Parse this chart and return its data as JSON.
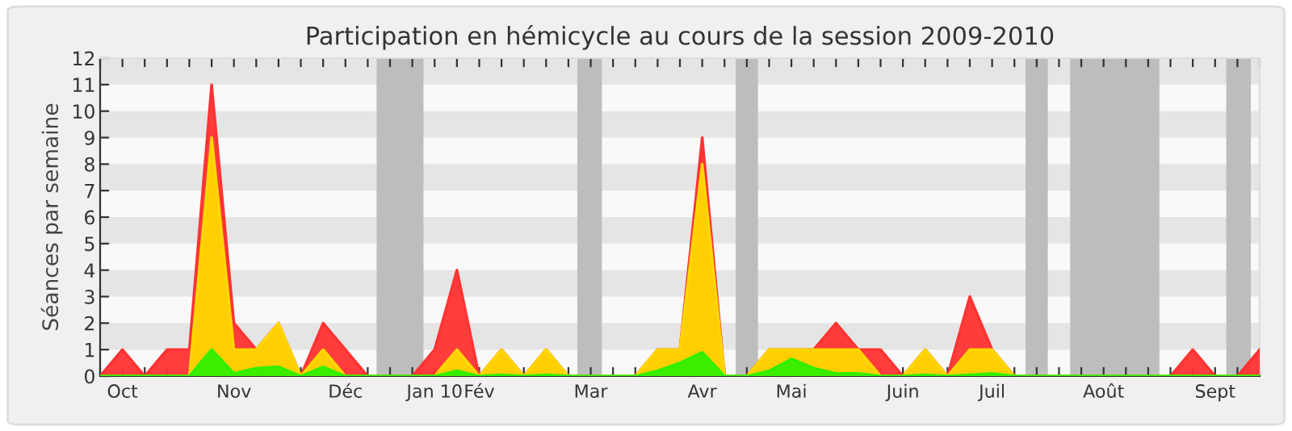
{
  "chart_data": {
    "type": "area",
    "title": "Participation en hémicycle au cours de la session 2009-2010",
    "ylabel": "Séances par semaine",
    "categories": [
      null,
      "Oct",
      null,
      null,
      null,
      null,
      "Nov",
      null,
      null,
      null,
      null,
      "Déc",
      null,
      null,
      null,
      "Jan 10",
      null,
      "Fév",
      null,
      null,
      null,
      null,
      "Mar",
      null,
      null,
      null,
      null,
      "Avr",
      null,
      null,
      null,
      "Mai",
      null,
      null,
      null,
      null,
      "Juin",
      null,
      null,
      null,
      "Juil",
      null,
      null,
      null,
      null,
      "Août",
      null,
      null,
      null,
      null,
      "Sept",
      null,
      null
    ],
    "series": [
      {
        "color": "#ff3333",
        "values": [
          0,
          1,
          0,
          1,
          1,
          11,
          2,
          1,
          2,
          0,
          2,
          1,
          0,
          0,
          0,
          1,
          4,
          0,
          1,
          0,
          1,
          0,
          0,
          0,
          0,
          1,
          1,
          9,
          0,
          0,
          1,
          1,
          1,
          2,
          1,
          1,
          0,
          1,
          0,
          3,
          1,
          0,
          0,
          0,
          0,
          0,
          0,
          0,
          0,
          1,
          0,
          0,
          1
        ]
      },
      {
        "color": "#ffd700",
        "values": [
          0,
          0,
          0,
          0,
          0,
          9,
          1,
          1,
          2,
          0,
          1,
          0,
          0,
          0,
          0,
          0,
          1,
          0,
          1,
          0,
          1,
          0,
          0,
          0,
          0,
          1,
          1,
          8,
          0,
          0,
          1,
          1,
          1,
          1,
          1,
          0,
          0,
          1,
          0,
          1,
          1,
          0,
          0,
          0,
          0,
          0,
          0,
          0,
          0,
          0,
          0,
          0,
          0
        ]
      },
      {
        "color": "#33ee00",
        "values": [
          0,
          0,
          0,
          0,
          0,
          1,
          0.1,
          0.3,
          0.35,
          0,
          0.35,
          0,
          0,
          0,
          0,
          0,
          0.2,
          0,
          0.05,
          0,
          0.05,
          0,
          0,
          0,
          0,
          0.2,
          0.5,
          0.9,
          0,
          0,
          0.2,
          0.65,
          0.3,
          0.1,
          0.1,
          0,
          0,
          0.05,
          0,
          0.05,
          0.1,
          0,
          0,
          0,
          0,
          0,
          0,
          0,
          0,
          0,
          0,
          0,
          0
        ]
      }
    ],
    "ylim": [
      0,
      12
    ],
    "yticks": [
      0,
      1,
      2,
      3,
      4,
      5,
      6,
      7,
      8,
      9,
      10,
      11,
      12
    ]
  }
}
